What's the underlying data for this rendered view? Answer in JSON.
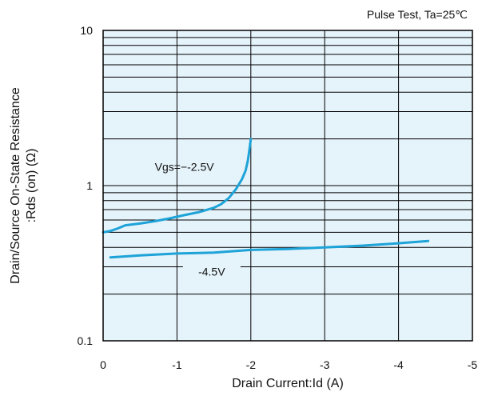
{
  "chart_data": {
    "type": "line",
    "annotation": "Pulse Test, Ta=25℃",
    "xlabel": "Drain Current:Id (A)",
    "ylabel_line1": "Drain/Source On-State Resistance",
    "ylabel_line2": ":Rds (on) (Ω)",
    "xlim": [
      0,
      -5
    ],
    "ylim": [
      0.1,
      10
    ],
    "y_scale": "log",
    "grid": true,
    "x_ticks": [
      0,
      -1,
      -2,
      -3,
      -4,
      -5
    ],
    "x_tick_labels": [
      "0",
      "-1",
      "-2",
      "-3",
      "-4",
      "-5"
    ],
    "y_ticks": [
      0.1,
      1,
      10
    ],
    "y_tick_labels": [
      "0.1",
      "1",
      "10"
    ],
    "series": [
      {
        "name": "Vgs=−-2.5V",
        "color": "#1ea3d8",
        "x": [
          0,
          -0.1,
          -0.2,
          -0.3,
          -0.5,
          -0.7,
          -0.9,
          -1.1,
          -1.3,
          -1.5,
          -1.6,
          -1.7,
          -1.8,
          -1.88,
          -1.93,
          -1.96,
          -1.98,
          -2.0
        ],
        "y": [
          0.5,
          0.51,
          0.53,
          0.555,
          0.57,
          0.59,
          0.615,
          0.645,
          0.675,
          0.72,
          0.76,
          0.83,
          0.95,
          1.1,
          1.25,
          1.45,
          1.7,
          2.0
        ]
      },
      {
        "name": "-4.5V",
        "color": "#1ea3d8",
        "x": [
          -0.1,
          -0.5,
          -1.0,
          -1.5,
          -2.0,
          -2.5,
          -3.0,
          -3.5,
          -4.0,
          -4.4
        ],
        "y": [
          0.345,
          0.355,
          0.365,
          0.37,
          0.385,
          0.39,
          0.4,
          0.41,
          0.425,
          0.44
        ]
      }
    ]
  }
}
